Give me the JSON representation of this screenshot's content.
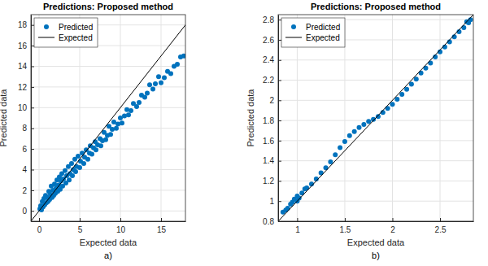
{
  "chart_data": [
    {
      "type": "scatter",
      "title": "Predictions: Proposed method",
      "caption": "a)",
      "x_label": "Expected data",
      "y_label": "Predicted data",
      "xlim": [
        -1,
        18
      ],
      "ylim": [
        -1,
        19
      ],
      "xticks": [
        0,
        5,
        10,
        15
      ],
      "yticks": [
        0,
        2,
        4,
        6,
        8,
        10,
        12,
        14,
        16,
        18
      ],
      "grid": true,
      "legend": "upper left",
      "series": [
        {
          "name": "Predicted",
          "type": "scatter",
          "marker": "circle",
          "color": "#0072bd",
          "x": [
            0.1,
            0.2,
            0.3,
            0.4,
            0.5,
            0.6,
            0.7,
            0.8,
            0.9,
            1.0,
            1.1,
            1.2,
            1.3,
            1.4,
            1.5,
            1.6,
            1.7,
            1.8,
            1.9,
            2.0,
            2.1,
            2.2,
            2.3,
            2.4,
            2.5,
            2.6,
            2.7,
            2.8,
            2.9,
            3.0,
            3.2,
            3.3,
            3.4,
            3.6,
            3.7,
            3.8,
            4.0,
            4.1,
            4.2,
            4.4,
            4.5,
            4.6,
            4.8,
            5.0,
            5.1,
            5.3,
            5.5,
            5.6,
            5.8,
            6.0,
            6.2,
            6.3,
            6.5,
            6.7,
            6.9,
            7.0,
            7.2,
            7.5,
            7.6,
            7.8,
            8.0,
            8.2,
            8.4,
            8.6,
            8.8,
            9.0,
            9.2,
            9.5,
            9.7,
            10.0,
            10.2,
            10.5,
            10.8,
            11.0,
            11.3,
            11.6,
            12.0,
            12.3,
            12.6,
            13.0,
            13.3,
            13.6,
            14.0,
            14.3,
            14.7,
            15.0,
            15.4,
            15.8,
            16.2,
            16.6,
            17.0,
            17.4,
            17.8
          ],
          "values": [
            0.2,
            0.5,
            0.1,
            0.9,
            0.4,
            1.2,
            0.6,
            1.5,
            0.8,
            1.3,
            0.9,
            1.9,
            1.1,
            1.6,
            2.4,
            1.3,
            2.0,
            1.5,
            2.6,
            1.7,
            2.2,
            3.0,
            1.9,
            2.5,
            3.3,
            2.1,
            2.9,
            3.6,
            2.4,
            3.1,
            3.9,
            2.7,
            3.4,
            4.3,
            3.0,
            3.6,
            4.6,
            3.4,
            4.0,
            5.0,
            3.8,
            4.3,
            5.3,
            4.2,
            4.8,
            5.6,
            4.6,
            5.2,
            5.9,
            5.0,
            5.6,
            6.3,
            5.5,
            6.1,
            6.7,
            5.9,
            6.4,
            7.0,
            6.3,
            6.8,
            7.6,
            6.9,
            7.3,
            8.2,
            7.4,
            7.9,
            8.6,
            8.0,
            8.4,
            9.0,
            8.5,
            9.2,
            9.8,
            9.3,
            9.7,
            10.4,
            10.1,
            10.5,
            11.2,
            11.0,
            11.4,
            12.2,
            11.8,
            12.3,
            13.0,
            12.4,
            12.9,
            13.5,
            13.3,
            14.0,
            14.2,
            14.9,
            15.0
          ]
        },
        {
          "name": "Expected",
          "type": "line",
          "line_style": "solid",
          "color": "#000000",
          "x": [
            -1,
            19
          ],
          "values": [
            -1,
            19
          ]
        }
      ]
    },
    {
      "type": "scatter",
      "title": "Predictions: Proposed method",
      "caption": "b)",
      "x_label": "Expected data",
      "y_label": "Predicted data",
      "xlim": [
        0.8,
        2.85
      ],
      "ylim": [
        0.8,
        2.85
      ],
      "xticks": [
        1,
        1.5,
        2,
        2.5
      ],
      "yticks": [
        0.8,
        1,
        1.2,
        1.4,
        1.6,
        1.8,
        2,
        2.2,
        2.4,
        2.6,
        2.8
      ],
      "grid": true,
      "legend": "upper left",
      "series": [
        {
          "name": "Predicted",
          "type": "scatter",
          "marker": "circle",
          "color": "#0072bd",
          "x": [
            0.85,
            0.88,
            0.9,
            0.93,
            0.95,
            0.97,
            1.0,
            1.0,
            1.02,
            1.05,
            1.08,
            1.1,
            1.15,
            1.2,
            1.25,
            1.3,
            1.35,
            1.4,
            1.45,
            1.5,
            1.55,
            1.6,
            1.65,
            1.7,
            1.75,
            1.8,
            1.85,
            1.9,
            1.95,
            2.0,
            2.05,
            2.1,
            2.15,
            2.2,
            2.25,
            2.3,
            2.35,
            2.4,
            2.45,
            2.5,
            2.55,
            2.6,
            2.65,
            2.7,
            2.75,
            2.78,
            2.8,
            2.82
          ],
          "values": [
            0.89,
            0.91,
            0.93,
            0.97,
            0.99,
            1.02,
            1.0,
            1.05,
            1.03,
            1.08,
            1.12,
            1.13,
            1.17,
            1.22,
            1.28,
            1.33,
            1.39,
            1.46,
            1.53,
            1.59,
            1.65,
            1.69,
            1.73,
            1.76,
            1.79,
            1.81,
            1.84,
            1.88,
            1.92,
            1.96,
            2.01,
            2.06,
            2.11,
            2.16,
            2.21,
            2.27,
            2.32,
            2.37,
            2.43,
            2.48,
            2.53,
            2.58,
            2.63,
            2.68,
            2.72,
            2.78,
            2.77,
            2.8
          ]
        },
        {
          "name": "Expected",
          "type": "line",
          "line_style": "solid",
          "color": "#000000",
          "x": [
            0.8,
            2.85
          ],
          "values": [
            0.8,
            2.85
          ]
        }
      ]
    }
  ]
}
